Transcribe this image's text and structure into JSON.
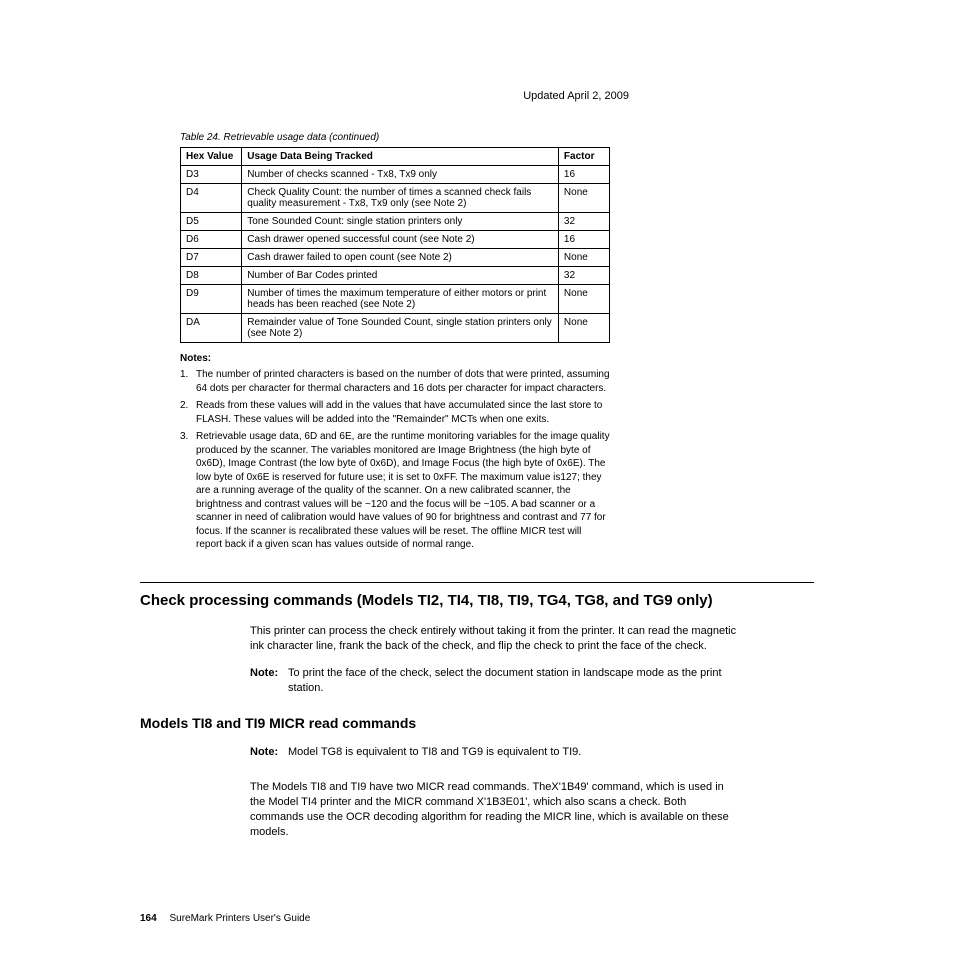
{
  "header": {
    "date": "Updated April 2, 2009"
  },
  "table": {
    "caption": "Table 24. Retrievable usage data  (continued)",
    "columns": [
      "Hex Value",
      "Usage Data Being Tracked",
      "Factor"
    ],
    "rows": [
      [
        "D3",
        "Number of checks scanned - Tx8, Tx9 only",
        "16"
      ],
      [
        "D4",
        "Check Quality Count: the number of times a scanned check fails quality measurement - Tx8, Tx9 only (see Note 2)",
        "None"
      ],
      [
        "D5",
        "Tone Sounded Count: single station printers only",
        "32"
      ],
      [
        "D6",
        "Cash drawer opened successful count (see Note 2)",
        "16"
      ],
      [
        "D7",
        "Cash drawer failed to open count (see Note 2)",
        "None"
      ],
      [
        "D8",
        "Number of Bar Codes printed",
        "32"
      ],
      [
        "D9",
        "Number of times the maximum temperature of either motors or print heads has been reached (see Note 2)",
        "None"
      ],
      [
        "DA",
        "Remainder value of Tone Sounded Count, single station printers only (see Note 2)",
        "None"
      ]
    ]
  },
  "notes": {
    "title": "Notes:",
    "items": [
      "The number of printed characters is based on the number of dots that were printed, assuming 64 dots per character for thermal characters and 16 dots per character for impact characters.",
      "Reads from these values will add in the values that have accumulated since the last store to FLASH. These values will be added into the \"Remainder\" MCTs when one exits.",
      "Retrievable usage data, 6D and 6E, are the runtime monitoring variables for the image quality produced by the scanner. The variables monitored are Image Brightness (the high byte of 0x6D), Image Contrast (the low byte of 0x6D), and Image Focus (the high byte of 0x6E). The low byte of 0x6E is reserved for future use; it is set to 0xFF. The maximum value is127; they are a running average of the quality of the scanner. On a new calibrated scanner, the brightness and contrast values will be ~120 and the focus will be ~105. A bad scanner or a scanner in need of calibration would have values of 90 for brightness and contrast and 77 for focus. If the scanner is recalibrated these values will be reset. The offline MICR test will report back if a given scan has values outside of normal range."
    ]
  },
  "section1": {
    "heading": "Check processing commands (Models TI2, TI4, TI8, TI9, TG4, TG8, and TG9 only)",
    "body": "This printer can process the check entirely without taking it from the printer. It can read the magnetic ink character line, frank the back of the check, and flip the check to print the face of the check.",
    "note_label": "Note:",
    "note_body": "To print the face of the check, select the document station in landscape mode as the print station."
  },
  "section2": {
    "heading": "Models TI8 and TI9 MICR read commands",
    "note_label": "Note:",
    "note_body": "Model TG8 is equivalent to TI8 and TG9 is equivalent to TI9.",
    "body": "The Models TI8 and TI9 have two MICR read commands. TheX'1B49' command, which is used in the Model TI4 printer and the MICR command X'1B3E01', which also scans a check. Both commands use the OCR decoding algorithm for reading the MICR line, which is available on these models."
  },
  "footer": {
    "page": "164",
    "title": "SureMark Printers User's Guide"
  }
}
